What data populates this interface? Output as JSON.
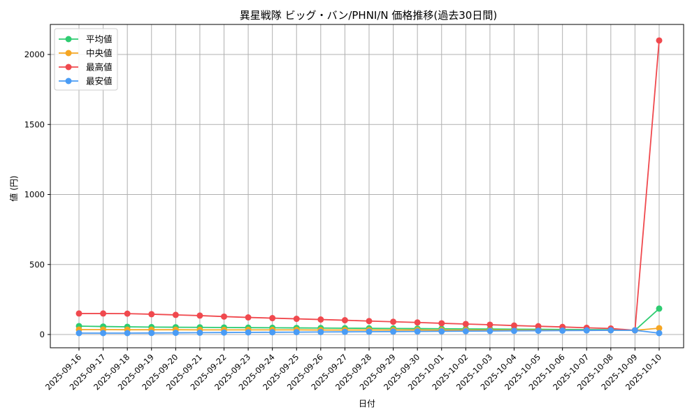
{
  "chart_data": {
    "type": "line",
    "title": "異星戦隊 ビッグ・バン/PHNI/N 価格推移(過去30日間)",
    "xlabel": "日付",
    "ylabel": "値 (円)",
    "ylim": [
      -100,
      2200
    ],
    "yticks": [
      0,
      500,
      1000,
      1500,
      2000
    ],
    "grid": true,
    "legend_position": "upper left",
    "categories": [
      "2025-09-16",
      "2025-09-17",
      "2025-09-18",
      "2025-09-19",
      "2025-09-20",
      "2025-09-21",
      "2025-09-22",
      "2025-09-23",
      "2025-09-24",
      "2025-09-25",
      "2025-09-26",
      "2025-09-27",
      "2025-09-28",
      "2025-09-29",
      "2025-09-30",
      "2025-10-01",
      "2025-10-02",
      "2025-10-03",
      "2025-10-04",
      "2025-10-05",
      "2025-10-06",
      "2025-10-07",
      "2025-10-08",
      "2025-10-09",
      "2025-10-10"
    ],
    "series": [
      {
        "name": "平均値",
        "color": "#2ecc71",
        "values": [
          60,
          57,
          55,
          53,
          52,
          51,
          50,
          49,
          48,
          47,
          46,
          45,
          44,
          43,
          42,
          41,
          40,
          39,
          38,
          37,
          36,
          35,
          34,
          30,
          185
        ]
      },
      {
        "name": "中央値",
        "color": "#f5a623",
        "values": [
          35,
          35,
          34,
          34,
          34,
          33,
          33,
          33,
          33,
          33,
          32,
          32,
          32,
          32,
          32,
          31,
          31,
          31,
          31,
          31,
          30,
          30,
          30,
          30,
          45
        ]
      },
      {
        "name": "最高値",
        "color": "#f0494e",
        "values": [
          150,
          150,
          149,
          145,
          140,
          135,
          128,
          122,
          117,
          112,
          107,
          102,
          96,
          91,
          86,
          80,
          75,
          70,
          64,
          59,
          54,
          48,
          43,
          30,
          2100
        ]
      },
      {
        "name": "最安値",
        "color": "#4a9cf5",
        "values": [
          10,
          10,
          10,
          11,
          12,
          13,
          14,
          15,
          16,
          17,
          18,
          19,
          20,
          21,
          22,
          23,
          24,
          25,
          26,
          27,
          28,
          29,
          30,
          30,
          10
        ]
      }
    ]
  }
}
